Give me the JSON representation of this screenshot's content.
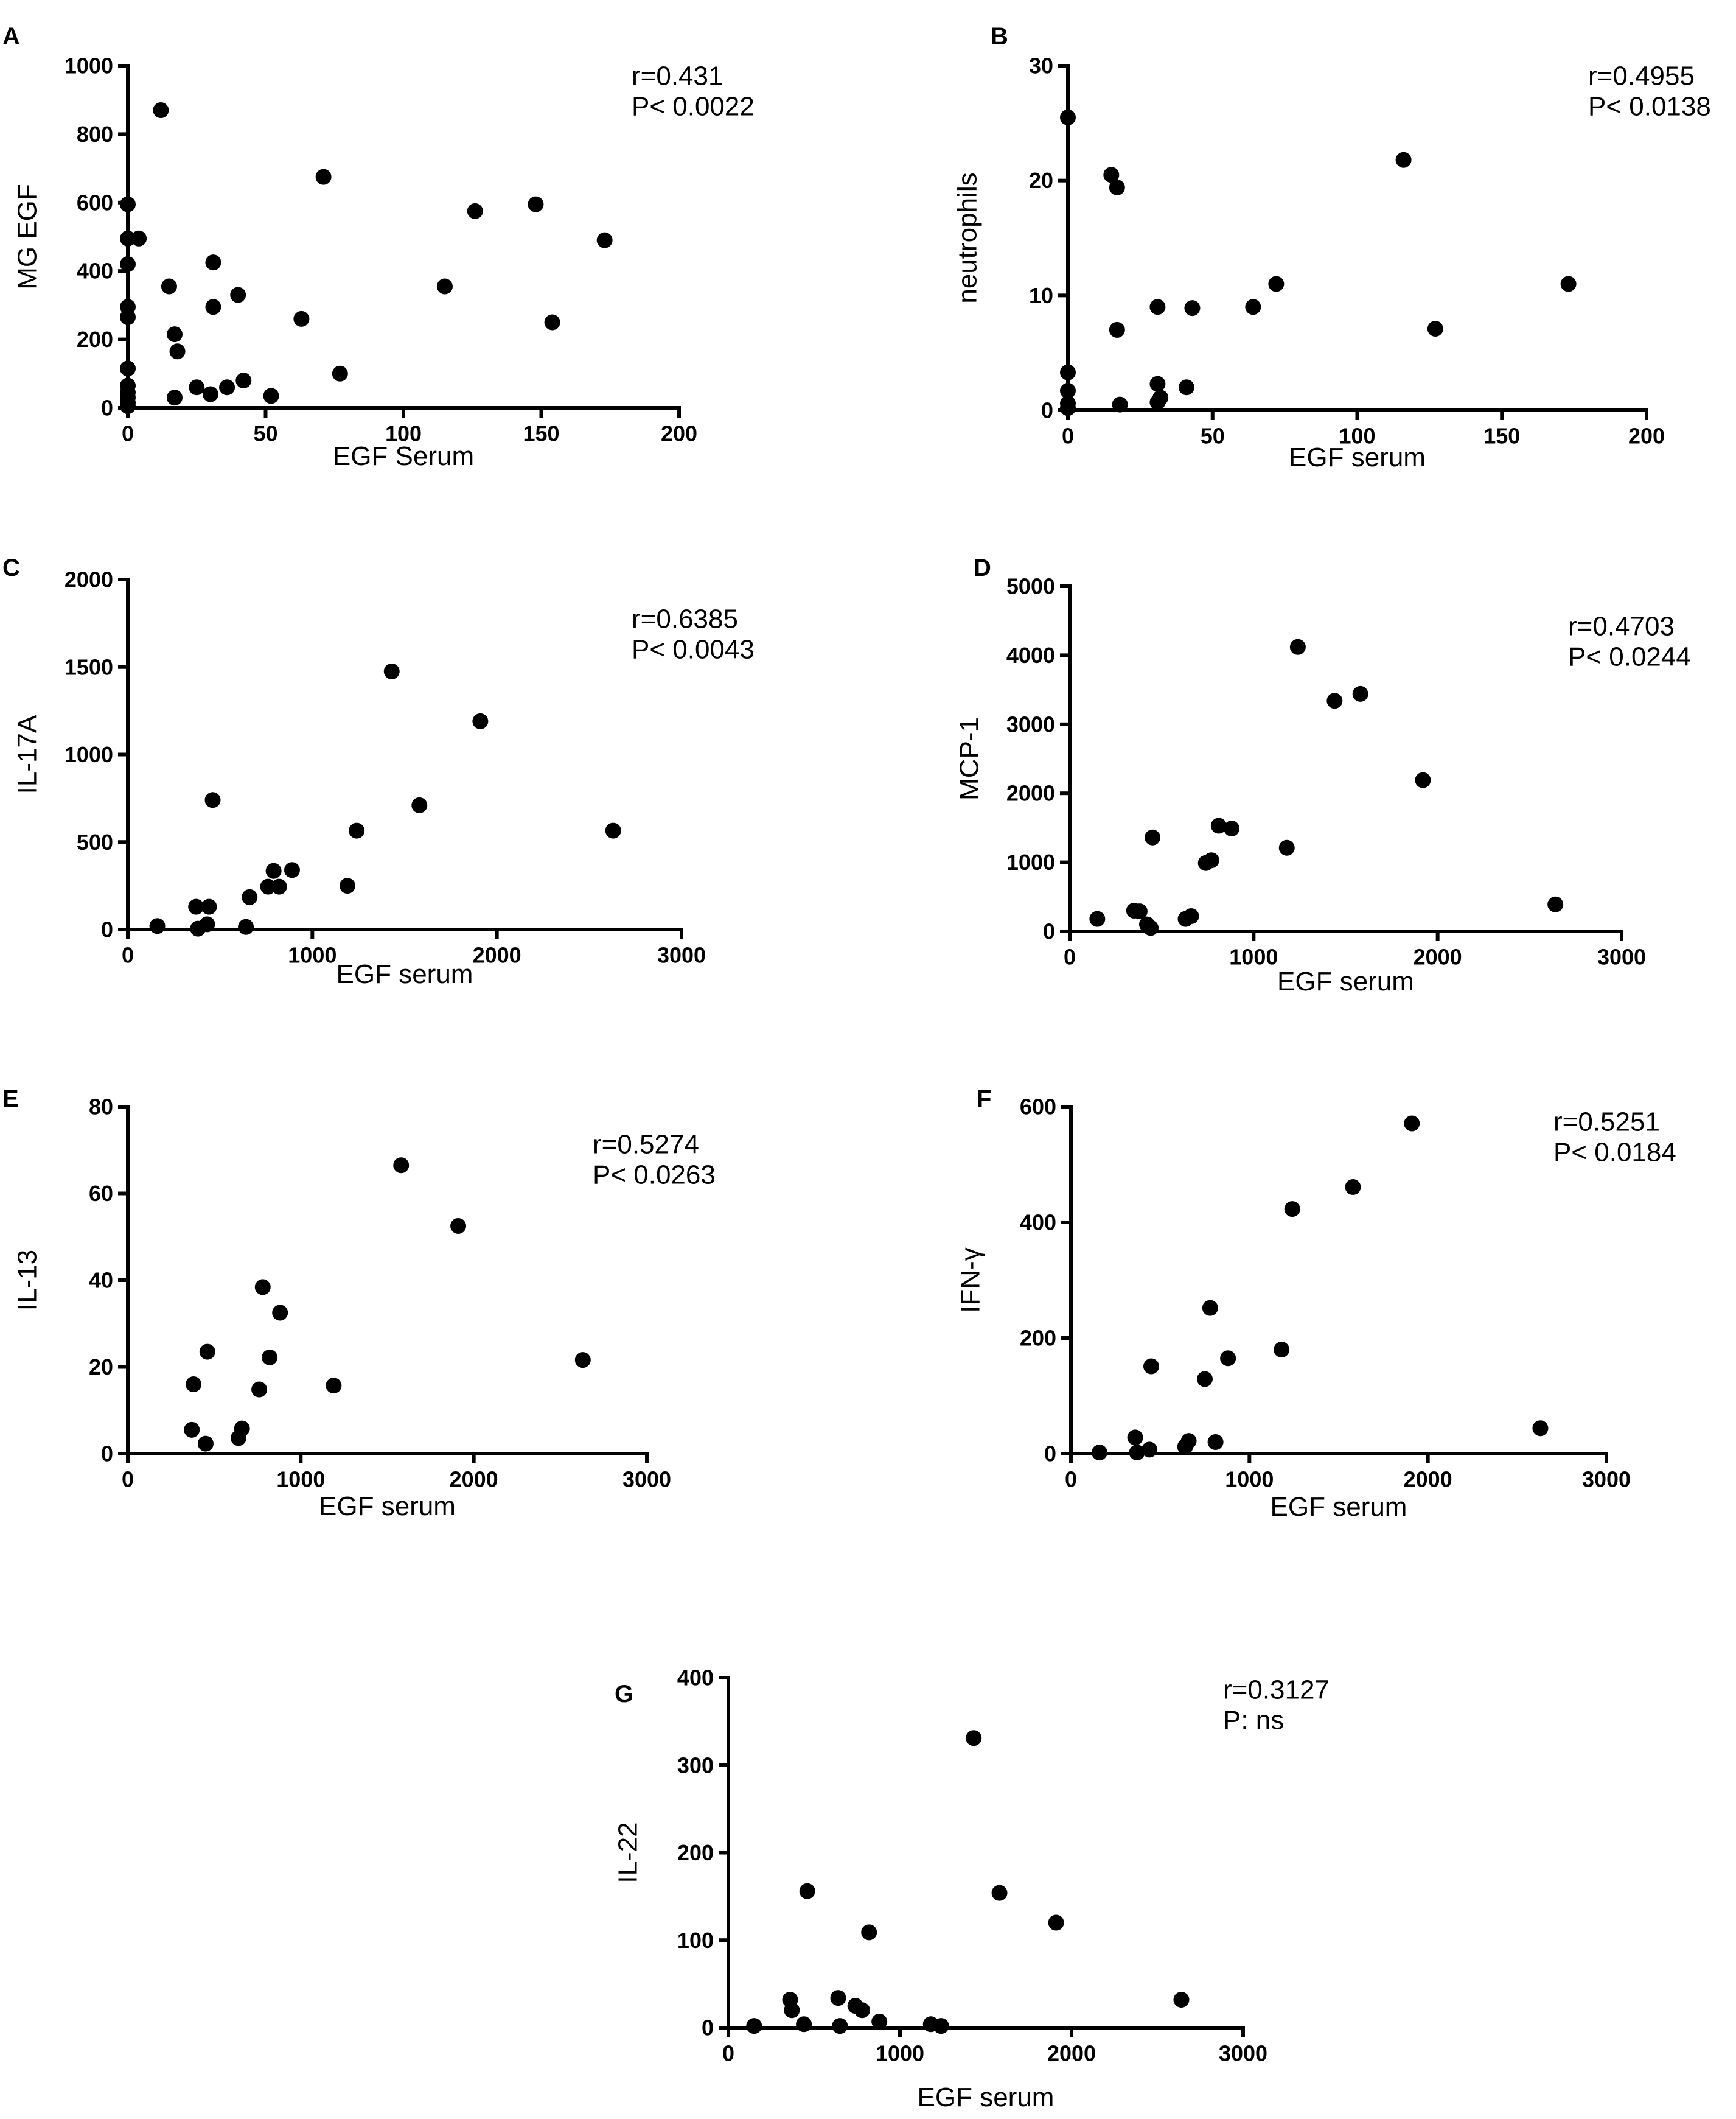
{
  "chart_data": [
    {
      "type": "scatter",
      "panel": "A",
      "xlabel": "EGF Serum",
      "ylabel": "MG EGF",
      "xlim": [
        0,
        200
      ],
      "ylim": [
        0,
        1000
      ],
      "xticks": [
        0,
        50,
        100,
        150,
        200
      ],
      "yticks": [
        0,
        200,
        400,
        600,
        800,
        1000
      ],
      "annotations": [
        "r=0.431",
        "P< 0.0022"
      ],
      "x": [
        0,
        0,
        0,
        0,
        0,
        0,
        0,
        0,
        0,
        0,
        0,
        4,
        12,
        15,
        17,
        17,
        18,
        25,
        30,
        31,
        31,
        36,
        40,
        42,
        52,
        63,
        71,
        77,
        115,
        126,
        148,
        154,
        173
      ],
      "y": [
        595,
        495,
        420,
        295,
        265,
        115,
        65,
        45,
        30,
        15,
        5,
        495,
        870,
        355,
        30,
        215,
        165,
        60,
        40,
        295,
        425,
        60,
        330,
        80,
        35,
        260,
        675,
        100,
        355,
        575,
        595,
        250,
        490
      ]
    },
    {
      "type": "scatter",
      "panel": "B",
      "xlabel": "EGF serum",
      "ylabel": "neutrophils",
      "xlim": [
        0,
        200
      ],
      "ylim": [
        0,
        30
      ],
      "xticks": [
        0,
        50,
        100,
        150,
        200
      ],
      "yticks": [
        0,
        10,
        20,
        30
      ],
      "annotations": [
        "r=0.4955",
        "P< 0.0138"
      ],
      "x": [
        0,
        0,
        0,
        0,
        0,
        15,
        17,
        17,
        18,
        31,
        31,
        31,
        32,
        41,
        43,
        64,
        72,
        116,
        127,
        173
      ],
      "y": [
        25.5,
        3.3,
        1.7,
        0.6,
        0.2,
        20.5,
        19.4,
        7.0,
        0.5,
        9.0,
        2.3,
        0.7,
        1.1,
        2.0,
        8.9,
        9.0,
        11.0,
        21.8,
        7.1,
        11.0
      ]
    },
    {
      "type": "scatter",
      "panel": "C",
      "xlabel": "EGF serum",
      "ylabel": "IL-17A",
      "xlim": [
        0,
        3000
      ],
      "ylim": [
        0,
        2000
      ],
      "xticks": [
        0,
        1000,
        2000,
        3000
      ],
      "yticks": [
        0,
        500,
        1000,
        1500,
        2000
      ],
      "annotations": [
        "r=0.6385",
        "P< 0.0043"
      ],
      "x": [
        160,
        370,
        380,
        430,
        440,
        460,
        640,
        660,
        760,
        790,
        820,
        890,
        1190,
        1240,
        1430,
        1580,
        1910,
        2630
      ],
      "y": [
        20,
        130,
        5,
        30,
        130,
        740,
        15,
        185,
        245,
        335,
        245,
        340,
        250,
        565,
        1475,
        710,
        1190,
        565
      ]
    },
    {
      "type": "scatter",
      "panel": "D",
      "xlabel": "EGF serum",
      "ylabel": "MCP-1",
      "xlim": [
        0,
        3000
      ],
      "ylim": [
        0,
        5000
      ],
      "xticks": [
        0,
        1000,
        2000,
        3000
      ],
      "yticks": [
        0,
        1000,
        2000,
        3000,
        4000,
        5000
      ],
      "annotations": [
        "r=0.4703",
        "P< 0.0244"
      ],
      "x": [
        150,
        350,
        380,
        420,
        440,
        450,
        630,
        660,
        740,
        770,
        810,
        880,
        1180,
        1240,
        1440,
        1580,
        1920,
        2640
      ],
      "y": [
        180,
        300,
        290,
        100,
        50,
        1360,
        180,
        220,
        990,
        1030,
        1530,
        1490,
        1210,
        4120,
        3340,
        3440,
        2190,
        390
      ]
    },
    {
      "type": "scatter",
      "panel": "E",
      "xlabel": "EGF serum",
      "ylabel": "IL-13",
      "xlim": [
        0,
        3000
      ],
      "ylim": [
        0,
        80
      ],
      "xticks": [
        0,
        1000,
        2000,
        3000
      ],
      "yticks": [
        0,
        20,
        40,
        60,
        80
      ],
      "annotations": [
        "r=0.5274",
        "P< 0.0263"
      ],
      "x": [
        370,
        380,
        450,
        460,
        640,
        660,
        760,
        780,
        820,
        880,
        1190,
        1580,
        1910,
        2630
      ],
      "y": [
        5.5,
        16,
        2.3,
        23.5,
        3.6,
        5.8,
        14.8,
        38.4,
        22.2,
        32.5,
        15.7,
        66.5,
        52.5,
        21.6
      ]
    },
    {
      "type": "scatter",
      "panel": "F",
      "xlabel": "EGF serum",
      "ylabel": "IFN-γ",
      "xlim": [
        0,
        3000
      ],
      "ylim": [
        0,
        600
      ],
      "xticks": [
        0,
        1000,
        2000,
        3000
      ],
      "yticks": [
        0,
        200,
        400,
        600
      ],
      "annotations": [
        "r=0.5251",
        "P< 0.0184"
      ],
      "x": [
        160,
        360,
        370,
        440,
        450,
        640,
        660,
        750,
        780,
        810,
        880,
        1180,
        1240,
        1580,
        1910,
        2630
      ],
      "y": [
        2,
        28,
        2,
        7,
        151,
        12,
        22,
        129,
        252,
        20,
        165,
        180,
        423,
        461,
        571,
        44
      ]
    },
    {
      "type": "scatter",
      "panel": "G",
      "xlabel": "EGF serum",
      "ylabel": "IL-22",
      "xlim": [
        0,
        3000
      ],
      "ylim": [
        0,
        400
      ],
      "xticks": [
        0,
        1000,
        2000,
        3000
      ],
      "yticks": [
        0,
        100,
        200,
        300,
        400
      ],
      "annotations": [
        "r=0.3127",
        "P: ns"
      ],
      "x": [
        150,
        360,
        370,
        440,
        460,
        640,
        650,
        740,
        780,
        820,
        880,
        1180,
        1240,
        1430,
        1580,
        1910,
        2640
      ],
      "y": [
        2,
        32,
        20,
        4,
        156,
        34,
        2,
        25,
        20,
        109,
        7,
        4,
        2,
        331,
        154,
        120,
        32
      ]
    }
  ]
}
